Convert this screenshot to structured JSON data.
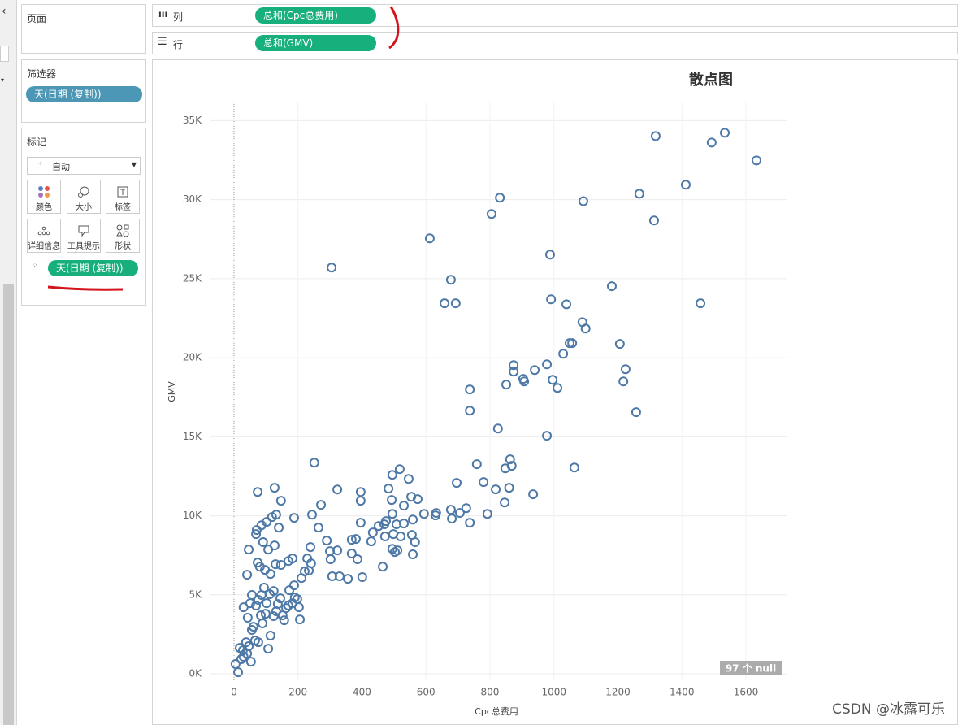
{
  "sidebar": {
    "pages_title": "页面",
    "filters_title": "筛选器",
    "filter_pill": "天(日期 (复制))",
    "marks_title": "标记",
    "mark_type": "自动",
    "mark_buttons": [
      "颜色",
      "大小",
      "标签",
      "详细信息",
      "工具提示",
      "形状"
    ],
    "detail_pill": "天(日期 (复制))"
  },
  "shelves": {
    "columns_label": "列",
    "columns_pill": "总和(Cpc总费用)",
    "rows_label": "行",
    "rows_pill": "总和(GMV)"
  },
  "chart_data": {
    "type": "scatter",
    "title": "散点图",
    "x_label": "Cpc总费用",
    "y_label": "GMV",
    "null_badge": "97 个 null",
    "color": "#4e79a7",
    "grid": true,
    "xlim": [
      -76,
      1727
    ],
    "ylim": [
      -460,
      36200
    ],
    "xticks": [
      0,
      200,
      400,
      600,
      800,
      1000,
      1200,
      1400,
      1600
    ],
    "yticks": [
      {
        "value": 0,
        "label": "0K"
      },
      {
        "value": 5000,
        "label": "5K"
      },
      {
        "value": 10000,
        "label": "10K"
      },
      {
        "value": 15000,
        "label": "15K"
      },
      {
        "value": 20000,
        "label": "20K"
      },
      {
        "value": 25000,
        "label": "25K"
      },
      {
        "value": 30000,
        "label": "30K"
      },
      {
        "value": 35000,
        "label": "35K"
      }
    ],
    "x": [
      1318,
      1534,
      1493,
      1633,
      831,
      805,
      1092,
      1267,
      1412,
      1313,
      612,
      305,
      678,
      658,
      693,
      988,
      1181,
      991,
      1039,
      1458,
      1089,
      1099,
      1049,
      1057,
      1206,
      1029,
      874,
      874,
      940,
      978,
      1224,
      904,
      907,
      996,
      1011,
      851,
      1217,
      737,
      737,
      1257,
      825,
      978,
      1064,
      863,
      868,
      848,
      759,
      860,
      935,
      780,
      818,
      846,
      792,
      696,
      726,
      678,
      706,
      737,
      681,
      630,
      632,
      594,
      251,
      518,
      495,
      546,
      323,
      272,
      396,
      396,
      483,
      493,
      554,
      574,
      531,
      495,
      559,
      531,
      475,
      470,
      452,
      508,
      434,
      429,
      472,
      498,
      556,
      566,
      521,
      495,
      503,
      511,
      559,
      465,
      330,
      356,
      307,
      401,
      302,
      300,
      323,
      368,
      386,
      368,
      396,
      381,
      264,
      290,
      188,
      244,
      239,
      229,
      241,
      234,
      221,
      211,
      127,
      147,
      74,
      132,
      119,
      140,
      102,
      86,
      71,
      69,
      91,
      127,
      107,
      46,
      74,
      81,
      114,
      41,
      170,
      183,
      147,
      130,
      97,
      188,
      173,
      145,
      112,
      102,
      132,
      157,
      183,
      203,
      206,
      30,
      56,
      69,
      43,
      89,
      56,
      114,
      76,
      107,
      28,
      41,
      5,
      13,
      23,
      53,
      66,
      84,
      124,
      94,
      152,
      170,
      190,
      99,
      61,
      38,
      18,
      30,
      46,
      163,
      137,
      198,
      124,
      76,
      51,
      86
    ],
    "values": [
      34020,
      34230,
      33610,
      32480,
      30120,
      29090,
      29900,
      30370,
      30940,
      28680,
      27550,
      25700,
      24930,
      23440,
      23440,
      26520,
      24520,
      23690,
      23380,
      23440,
      22250,
      21840,
      20920,
      20920,
      20870,
      20250,
      19530,
      19120,
      19220,
      19580,
      19270,
      18660,
      18500,
      18600,
      18090,
      18300,
      18500,
      17990,
      16650,
      16550,
      15520,
      15060,
      13050,
      13570,
      13160,
      13000,
      13260,
      11770,
      11360,
      12130,
      11670,
      10840,
      10120,
      12080,
      10480,
      10380,
      10180,
      9560,
      9820,
      10020,
      10180,
      10120,
      13360,
      12950,
      12590,
      12330,
      11660,
      10690,
      11510,
      10950,
      11720,
      11000,
      11200,
      11050,
      10640,
      10120,
      9760,
      9510,
      9660,
      9460,
      9350,
      9460,
      8940,
      8380,
      8690,
      8840,
      8790,
      8330,
      8690,
      7910,
      7710,
      7810,
      7560,
      6780,
      6170,
      6010,
      6170,
      6120,
      7250,
      7760,
      7810,
      7610,
      7250,
      8480,
      9560,
      8530,
      9250,
      8430,
      9870,
      10070,
      8020,
      7300,
      6990,
      6530,
      6480,
      6060,
      11770,
      10950,
      11510,
      10070,
      9920,
      9250,
      9610,
      9400,
      9100,
      8840,
      8330,
      8120,
      7860,
      7860,
      7040,
      6780,
      6320,
      6270,
      7140,
      7300,
      6890,
      6940,
      6580,
      5600,
      5290,
      4780,
      5040,
      4470,
      3960,
      3390,
      4470,
      4210,
      3440,
      4210,
      4990,
      4320,
      3550,
      3190,
      2780,
      2420,
      2000,
      1590,
      1490,
      1280,
      620,
      100,
      930,
      770,
      2110,
      3700,
      3650,
      5450,
      3700,
      4320,
      4830,
      3800,
      2980,
      2000,
      1640,
      1080,
      1750,
      4160,
      4420,
      4730,
      5240,
      4680,
      4470,
      4990
    ]
  },
  "watermark": "CSDN @冰露可乐"
}
